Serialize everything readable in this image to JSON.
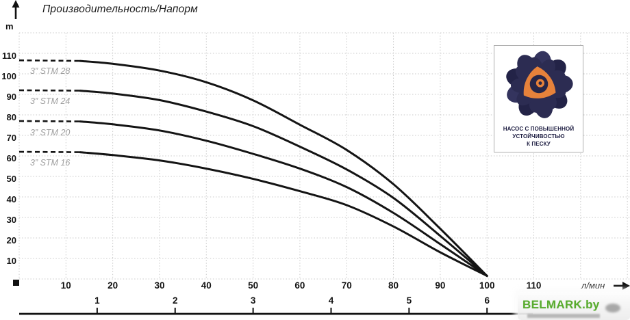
{
  "title": "Производительность/Напорм",
  "y_axis": {
    "unit": "m",
    "ticks": [
      110,
      100,
      90,
      80,
      70,
      60,
      50,
      40,
      30,
      20,
      10
    ]
  },
  "x_axis": {
    "unit": "л/мин",
    "ticks": [
      10,
      20,
      30,
      40,
      50,
      60,
      70,
      80,
      90,
      100,
      110
    ]
  },
  "secondary_axis": {
    "ticks": [
      1,
      2,
      3,
      4,
      5,
      6
    ],
    "flow_per_unit_lmin": 16.667
  },
  "chart_data": {
    "type": "line",
    "title": "Производительность/Напорм",
    "xlabel": "л/мин",
    "ylabel": "m",
    "xlim": [
      0,
      130
    ],
    "ylim": [
      0,
      120
    ],
    "grid": true,
    "legend_position": "left-on-curves",
    "series": [
      {
        "name": "3” STM 28",
        "dash_until_q": 13,
        "points": [
          [
            0,
            106.6
          ],
          [
            13,
            106.3
          ],
          [
            20,
            104.9
          ],
          [
            30,
            101.6
          ],
          [
            40,
            95.9
          ],
          [
            50,
            87.1
          ],
          [
            60,
            75.2
          ],
          [
            70,
            62.9
          ],
          [
            80,
            46.2
          ],
          [
            90,
            24.5
          ],
          [
            100,
            1.5
          ]
        ]
      },
      {
        "name": "3” STM 24",
        "dash_until_q": 13,
        "points": [
          [
            0,
            92.0
          ],
          [
            13,
            91.8
          ],
          [
            20,
            90.4
          ],
          [
            30,
            87.2
          ],
          [
            40,
            81.6
          ],
          [
            50,
            74.5
          ],
          [
            60,
            64.5
          ],
          [
            70,
            53.4
          ],
          [
            80,
            39.5
          ],
          [
            90,
            21.0
          ],
          [
            100,
            1.5
          ]
        ]
      },
      {
        "name": "3” STM 20",
        "dash_until_q": 13,
        "points": [
          [
            0,
            77.0
          ],
          [
            13,
            76.8
          ],
          [
            20,
            75.4
          ],
          [
            30,
            72.4
          ],
          [
            40,
            67.4
          ],
          [
            50,
            61.0
          ],
          [
            60,
            53.8
          ],
          [
            70,
            44.8
          ],
          [
            80,
            32.2
          ],
          [
            90,
            17.0
          ],
          [
            100,
            1.5
          ]
        ]
      },
      {
        "name": "3” STM 16",
        "dash_until_q": 13,
        "points": [
          [
            0,
            62.0
          ],
          [
            13,
            61.8
          ],
          [
            20,
            60.4
          ],
          [
            30,
            57.8
          ],
          [
            40,
            53.8
          ],
          [
            50,
            48.8
          ],
          [
            60,
            42.8
          ],
          [
            70,
            36.0
          ],
          [
            80,
            25.6
          ],
          [
            90,
            13.0
          ],
          [
            100,
            1.5
          ]
        ]
      }
    ]
  },
  "badge": {
    "lines": [
      "НАСОС С ПОВЫШЕННОЙ",
      "УСТОЙЧИВОСТЬЮ",
      "К ПЕСКУ"
    ]
  },
  "watermark": {
    "text": "BELMARK.by",
    "color": "#58ab2e"
  },
  "colors": {
    "curve": "#141414",
    "grid": "#c9c9c9",
    "axis_text": "#141414",
    "curve_label": "#9e9e9e",
    "logo_navy": "#2c2c52",
    "logo_orange": "#e6823b"
  }
}
